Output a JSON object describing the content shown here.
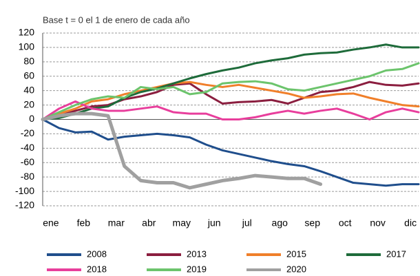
{
  "chart_data": {
    "type": "line",
    "subtitle": "Base t = 0 el 1 de enero de cada año",
    "categories": [
      "ene",
      null,
      "feb",
      null,
      "mar",
      null,
      "abr",
      null,
      "may",
      null,
      "jun",
      null,
      "jul",
      null,
      "ago",
      null,
      "sep",
      null,
      "oct",
      null,
      "nov",
      null,
      "dic",
      null
    ],
    "ylim": [
      -120,
      120
    ],
    "yticks": [
      -120,
      -100,
      -80,
      -60,
      -40,
      -20,
      0,
      20,
      40,
      60,
      80,
      100,
      120
    ],
    "grid": true,
    "series": [
      {
        "name": "2008",
        "color": "#1f4e8c",
        "values": [
          0,
          -12,
          -18,
          -17,
          -28,
          -24,
          -22,
          -20,
          -22,
          -25,
          -35,
          -43,
          -48,
          -53,
          -58,
          -62,
          -65,
          -72,
          -80,
          -88,
          -90,
          -92,
          -90,
          -90
        ]
      },
      {
        "name": "2013",
        "color": "#8b1e3f",
        "values": [
          0,
          5,
          12,
          18,
          20,
          28,
          32,
          38,
          48,
          50,
          35,
          22,
          24,
          25,
          27,
          22,
          30,
          38,
          40,
          45,
          52,
          48,
          47,
          50
        ]
      },
      {
        "name": "2015",
        "color": "#f07f2a",
        "values": [
          0,
          8,
          15,
          25,
          28,
          35,
          40,
          45,
          50,
          52,
          48,
          45,
          48,
          44,
          40,
          36,
          30,
          32,
          35,
          36,
          30,
          25,
          20,
          18
        ]
      },
      {
        "name": "2017",
        "color": "#1e6b3a",
        "values": [
          0,
          2,
          8,
          15,
          18,
          30,
          38,
          43,
          50,
          57,
          63,
          68,
          72,
          78,
          82,
          85,
          90,
          92,
          93,
          97,
          100,
          104,
          100,
          100
        ]
      },
      {
        "name": "2018",
        "color": "#e83e9c",
        "values": [
          0,
          15,
          25,
          15,
          12,
          12,
          15,
          18,
          10,
          8,
          8,
          0,
          0,
          3,
          8,
          12,
          8,
          12,
          15,
          8,
          0,
          10,
          15,
          10
        ]
      },
      {
        "name": "2019",
        "color": "#6cc46c",
        "values": [
          0,
          10,
          20,
          28,
          32,
          30,
          45,
          42,
          45,
          35,
          38,
          50,
          52,
          53,
          50,
          42,
          40,
          45,
          50,
          55,
          60,
          68,
          70,
          78
        ]
      },
      {
        "name": "2020",
        "color": "#a0a0a0",
        "values": [
          0,
          5,
          8,
          8,
          5,
          -65,
          -85,
          -88,
          -88,
          -95,
          -90,
          -85,
          -82,
          -78,
          -80,
          -82,
          -82,
          -90,
          null,
          null,
          null,
          null,
          null,
          null
        ]
      }
    ]
  }
}
